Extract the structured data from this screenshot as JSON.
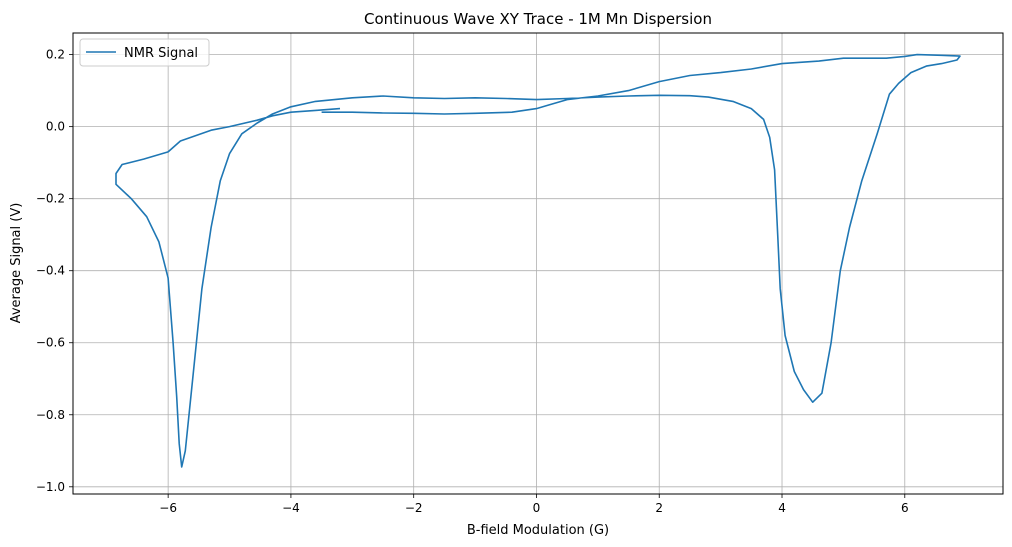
{
  "chart_data": {
    "type": "line",
    "title": "Continuous Wave XY Trace - 1M Mn Dispersion",
    "xlabel": "B-field Modulation (G)",
    "ylabel": "Average Signal (V)",
    "xlim": [
      -7.55,
      7.6
    ],
    "ylim": [
      -1.02,
      0.26
    ],
    "xticks": [
      -6,
      -4,
      -2,
      0,
      2,
      4,
      6
    ],
    "xtick_labels": [
      "−6",
      "−4",
      "−2",
      "0",
      "2",
      "4",
      "6"
    ],
    "yticks": [
      -1.0,
      -0.8,
      -0.6,
      -0.4,
      -0.2,
      0.0,
      0.2
    ],
    "ytick_labels": [
      "−1.0",
      "−0.8",
      "−0.6",
      "−0.4",
      "−0.2",
      "0.0",
      "0.2"
    ],
    "grid": true,
    "legend_position": "top-left",
    "color": "#1f77b4",
    "series": [
      {
        "name": "NMR Signal",
        "points": [
          [
            -3.2,
            0.05
          ],
          [
            -3.6,
            0.045
          ],
          [
            -4.0,
            0.04
          ],
          [
            -4.3,
            0.03
          ],
          [
            -4.55,
            0.018
          ],
          [
            -5.0,
            0.0
          ],
          [
            -5.3,
            -0.01
          ],
          [
            -5.8,
            -0.04
          ],
          [
            -6.0,
            -0.07
          ],
          [
            -6.4,
            -0.09
          ],
          [
            -6.75,
            -0.105
          ],
          [
            -6.85,
            -0.13
          ],
          [
            -6.85,
            -0.16
          ],
          [
            -6.6,
            -0.2
          ],
          [
            -6.35,
            -0.25
          ],
          [
            -6.15,
            -0.32
          ],
          [
            -6.0,
            -0.42
          ],
          [
            -5.92,
            -0.6
          ],
          [
            -5.86,
            -0.75
          ],
          [
            -5.82,
            -0.88
          ],
          [
            -5.78,
            -0.945
          ],
          [
            -5.72,
            -0.9
          ],
          [
            -5.6,
            -0.7
          ],
          [
            -5.45,
            -0.45
          ],
          [
            -5.3,
            -0.28
          ],
          [
            -5.15,
            -0.15
          ],
          [
            -5.0,
            -0.075
          ],
          [
            -4.8,
            -0.02
          ],
          [
            -4.55,
            0.01
          ],
          [
            -4.3,
            0.035
          ],
          [
            -4.0,
            0.055
          ],
          [
            -3.6,
            0.07
          ],
          [
            -3.0,
            0.08
          ],
          [
            -2.5,
            0.085
          ],
          [
            -2.0,
            0.08
          ],
          [
            -1.5,
            0.078
          ],
          [
            -1.0,
            0.08
          ],
          [
            -0.5,
            0.078
          ],
          [
            0.0,
            0.075
          ],
          [
            0.5,
            0.078
          ],
          [
            1.0,
            0.082
          ],
          [
            1.5,
            0.085
          ],
          [
            2.0,
            0.087
          ],
          [
            2.5,
            0.086
          ],
          [
            2.8,
            0.082
          ],
          [
            3.2,
            0.07
          ],
          [
            3.5,
            0.05
          ],
          [
            3.7,
            0.02
          ],
          [
            3.8,
            -0.03
          ],
          [
            3.88,
            -0.12
          ],
          [
            3.93,
            -0.3
          ],
          [
            3.97,
            -0.45
          ],
          [
            4.05,
            -0.58
          ],
          [
            4.2,
            -0.68
          ],
          [
            4.35,
            -0.73
          ],
          [
            4.5,
            -0.765
          ],
          [
            4.65,
            -0.74
          ],
          [
            4.8,
            -0.6
          ],
          [
            4.95,
            -0.4
          ],
          [
            5.1,
            -0.28
          ],
          [
            5.3,
            -0.15
          ],
          [
            5.55,
            -0.02
          ],
          [
            5.75,
            0.09
          ],
          [
            5.9,
            0.12
          ],
          [
            6.1,
            0.15
          ],
          [
            6.35,
            0.168
          ],
          [
            6.6,
            0.175
          ],
          [
            6.85,
            0.185
          ],
          [
            6.9,
            0.196
          ],
          [
            6.6,
            0.198
          ],
          [
            6.2,
            0.2
          ],
          [
            6.0,
            0.195
          ],
          [
            5.7,
            0.19
          ],
          [
            5.3,
            0.19
          ],
          [
            5.0,
            0.19
          ],
          [
            4.6,
            0.182
          ],
          [
            4.0,
            0.175
          ],
          [
            3.5,
            0.16
          ],
          [
            3.0,
            0.15
          ],
          [
            2.5,
            0.142
          ],
          [
            2.0,
            0.125
          ],
          [
            1.5,
            0.1
          ],
          [
            1.0,
            0.085
          ],
          [
            0.5,
            0.075
          ],
          [
            0.2,
            0.06
          ],
          [
            0.0,
            0.05
          ],
          [
            -0.4,
            0.04
          ],
          [
            -1.0,
            0.037
          ],
          [
            -1.5,
            0.035
          ],
          [
            -2.0,
            0.037
          ],
          [
            -2.5,
            0.038
          ],
          [
            -3.0,
            0.04
          ],
          [
            -3.5,
            0.04
          ]
        ]
      }
    ]
  }
}
